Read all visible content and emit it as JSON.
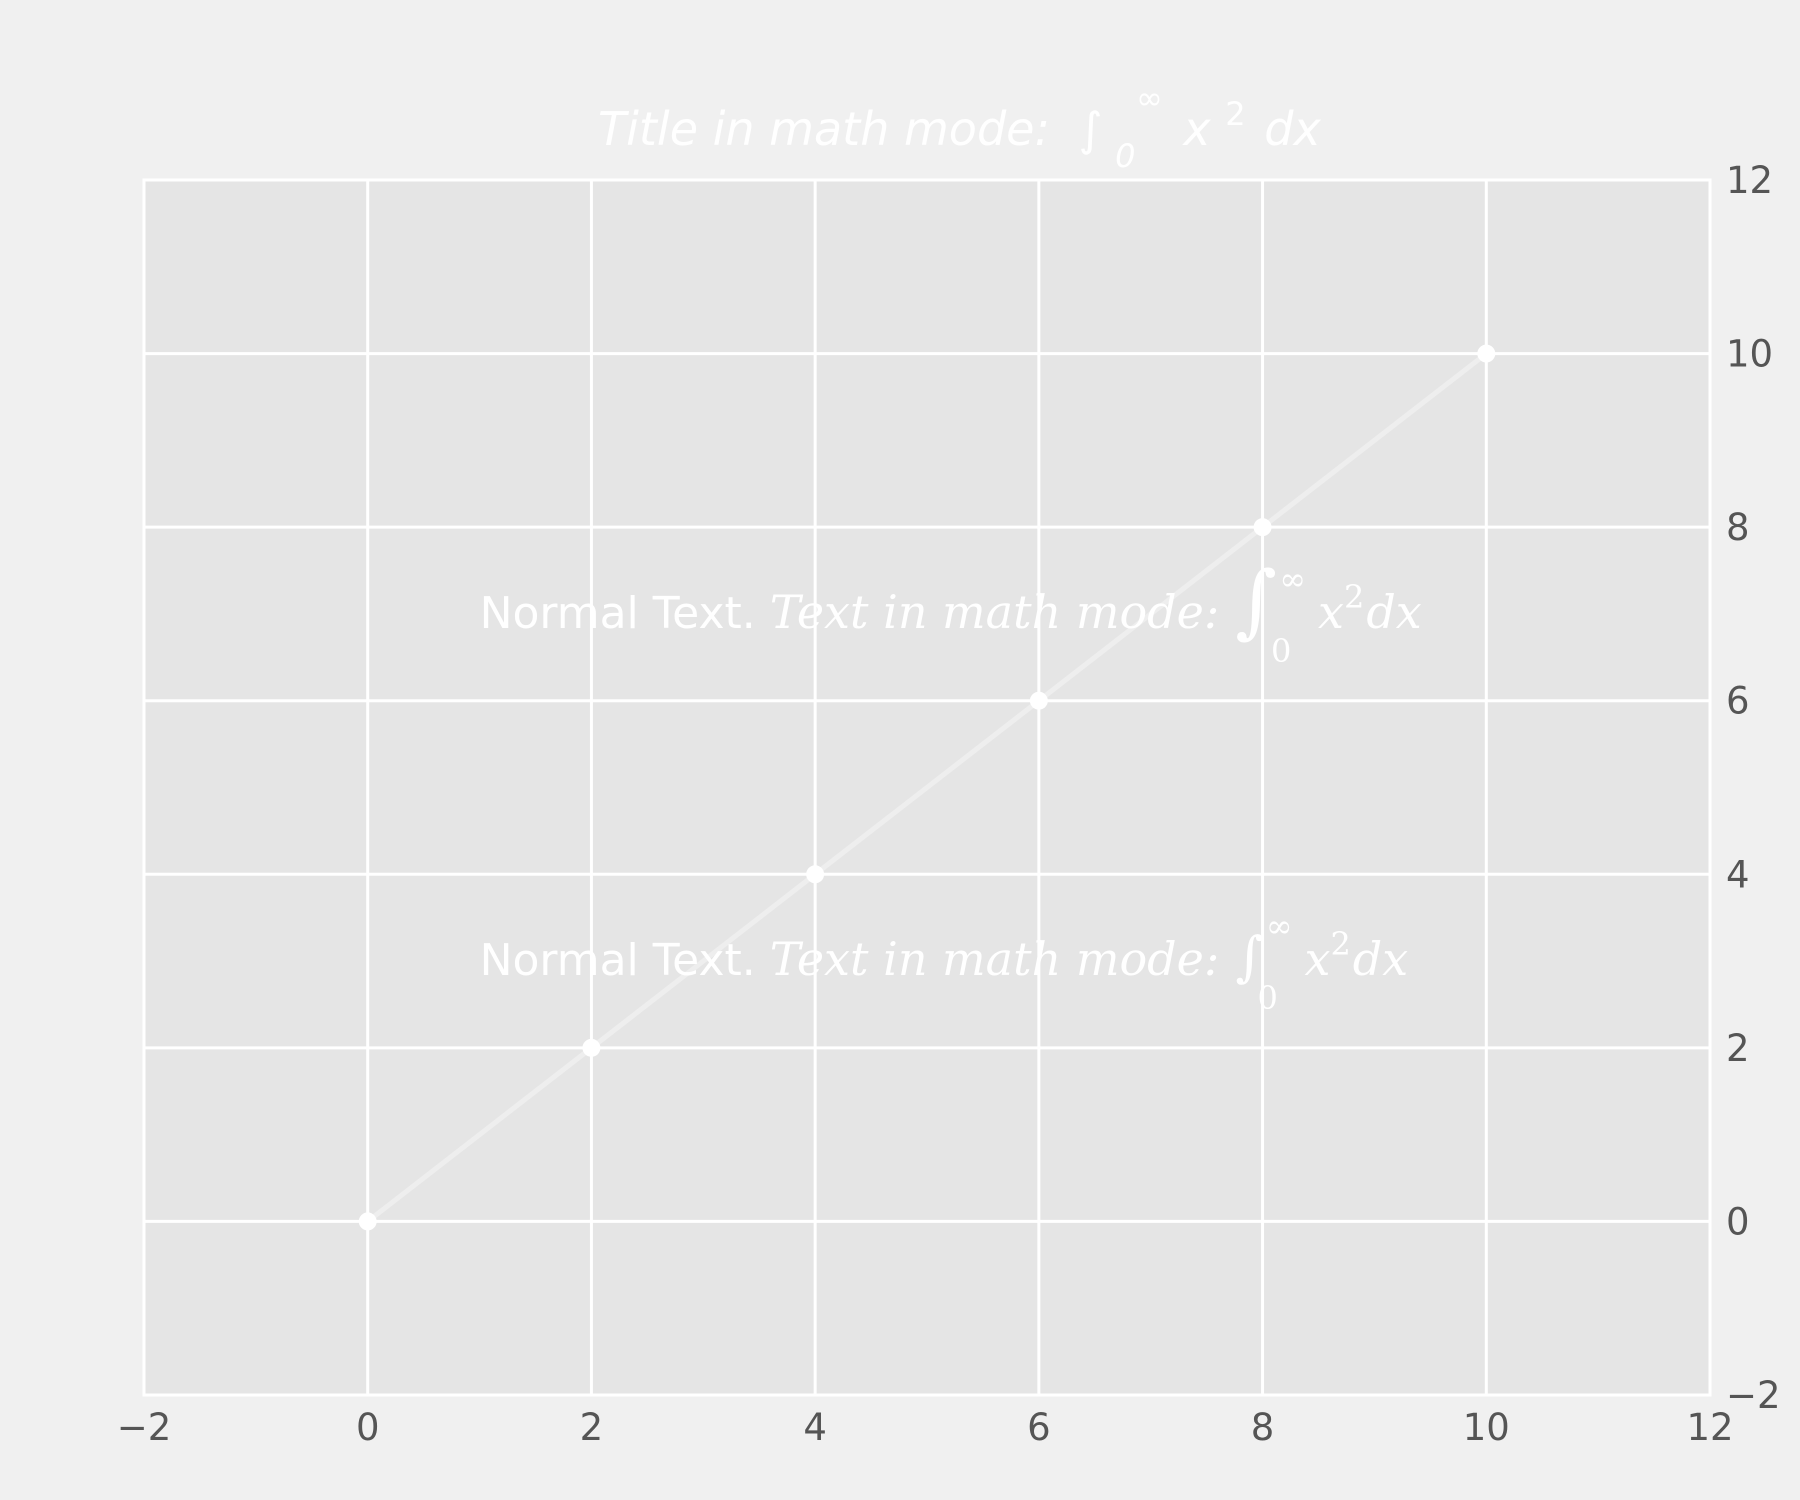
{
  "chart_data": {
    "type": "line",
    "title": {
      "prefix": "Title in math mode: ",
      "integral": "∫",
      "lower": "0",
      "upper": "∞",
      "base": "x",
      "exponent": "2",
      "suffix": "dx"
    },
    "xlabel": "",
    "ylabel": "",
    "xlim": [
      -2,
      12
    ],
    "ylim": [
      -2,
      12
    ],
    "x_ticks": [
      -2,
      0,
      2,
      4,
      6,
      8,
      10,
      12
    ],
    "y_ticks": [
      0,
      2,
      4,
      6,
      8,
      10,
      12,
      -2
    ],
    "x_tick_labels": [
      "−2",
      "0",
      "2",
      "4",
      "6",
      "8",
      "10",
      "12"
    ],
    "y_tick_labels": [
      "0",
      "2",
      "4",
      "6",
      "8",
      "10",
      "12",
      "−2"
    ],
    "grid": true,
    "y_axis_side": "right",
    "series": [
      {
        "x": [
          0,
          2,
          4,
          6,
          8,
          10
        ],
        "y": [
          0,
          2,
          4,
          6,
          8,
          10
        ]
      }
    ],
    "annotations": [
      {
        "x": 1,
        "y": 7,
        "normal": "Normal Text. ",
        "math": "Text in math mode:",
        "integral": "∫",
        "lower": "0",
        "upper": "∞",
        "base": "x",
        "exponent": "2",
        "suffix": "dx"
      },
      {
        "x": 1,
        "y": 3,
        "normal": "Normal Text. ",
        "math": "Text in math mode:",
        "integral": "∫",
        "lower": "0",
        "upper": "∞",
        "base": "x",
        "exponent": "2",
        "suffix": "dx"
      }
    ],
    "colors": {
      "figure_bg": "#f0f0f0",
      "axes_bg": "#e5e5e5",
      "grid": "#ffffff",
      "line": "#eeeeee",
      "marker": "#ffffff",
      "tick_text": "#555555",
      "text": "#ffffff"
    }
  }
}
